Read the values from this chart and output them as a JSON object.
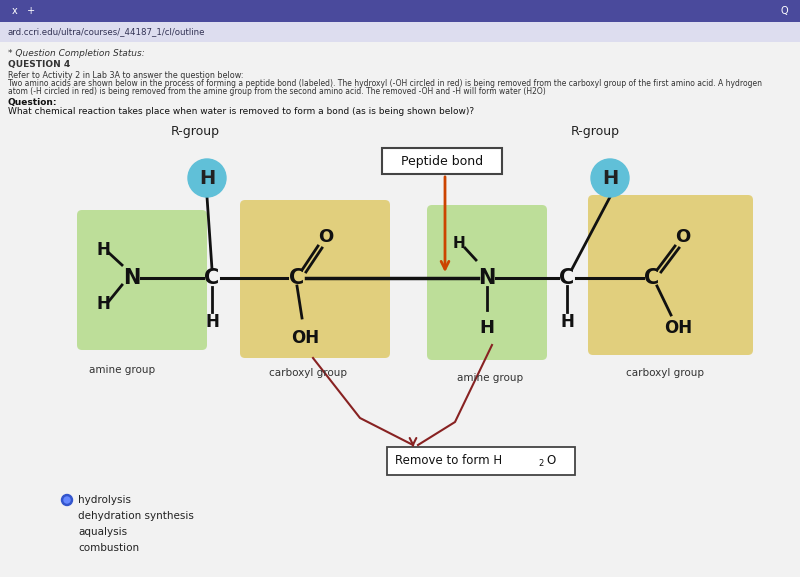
{
  "bg_color": "#d0d0e0",
  "browser_bar_color": "#4a4a9c",
  "url_text": "ard.ccri.edu/ultra/courses/_44187_1/cl/outline",
  "question_status": "* Question Completion Status:",
  "question_label": "QUESTION 4",
  "instruction_line1": "Refer to Activity 2 in Lab 3A to answer the question below:",
  "instruction_line2": "Two amino acids are shown below in the process of forming a peptide bond (labeled). The hydroxyl (-OH circled in red) is being removed from the carboxyl group of the first amino acid. A hydrogen",
  "instruction_line3": "atom (-H circled in red) is being removed from the amine group from the second amino acid. The removed -OH and -H will form water (H2O)",
  "question_text": "Question:",
  "question_body": "What chemical reaction takes place when water is removed to form a bond (as is being shown below)?",
  "green_bg": "#b8dc90",
  "yellow_bg": "#e0cc70",
  "blue_bg": "#60c0d8",
  "red_circle_color": "#cc2222",
  "arrow_color": "#cc4400",
  "content_bg": "#f2f2f2",
  "answer_selected": "hydrolysis",
  "answers": [
    "hydrolysis",
    "dehydration synthesis",
    "aqualysis",
    "combustion"
  ]
}
